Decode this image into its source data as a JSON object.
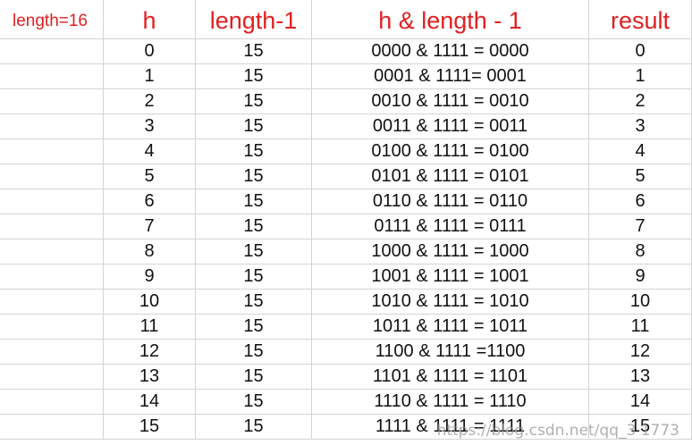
{
  "header": {
    "length_label": "length=16",
    "col_h": "h",
    "col_length_minus_1": "length-1",
    "col_expr": "h & length - 1",
    "col_result": "result"
  },
  "rows": [
    {
      "h": "0",
      "len": "15",
      "expr": "0000 & 1111 = 0000",
      "result": "0"
    },
    {
      "h": "1",
      "len": "15",
      "expr": "0001 & 1111= 0001",
      "result": "1"
    },
    {
      "h": "2",
      "len": "15",
      "expr": "0010 & 1111 = 0010",
      "result": "2"
    },
    {
      "h": "3",
      "len": "15",
      "expr": "0011 & 1111 = 0011",
      "result": "3"
    },
    {
      "h": "4",
      "len": "15",
      "expr": "0100 & 1111 = 0100",
      "result": "4"
    },
    {
      "h": "5",
      "len": "15",
      "expr": "0101 & 1111 = 0101",
      "result": "5"
    },
    {
      "h": "6",
      "len": "15",
      "expr": "0110 & 1111 = 0110",
      "result": "6"
    },
    {
      "h": "7",
      "len": "15",
      "expr": "0111 & 1111 = 0111",
      "result": "7"
    },
    {
      "h": "8",
      "len": "15",
      "expr": "1000 & 1111 = 1000",
      "result": "8"
    },
    {
      "h": "9",
      "len": "15",
      "expr": "1001 & 1111 = 1001",
      "result": "9"
    },
    {
      "h": "10",
      "len": "15",
      "expr": "1010 & 1111 = 1010",
      "result": "10"
    },
    {
      "h": "11",
      "len": "15",
      "expr": "1011 & 1111 = 1011",
      "result": "11"
    },
    {
      "h": "12",
      "len": "15",
      "expr": "1100 & 1111 =1100",
      "result": "12"
    },
    {
      "h": "13",
      "len": "15",
      "expr": "1101 & 1111 = 1101",
      "result": "13"
    },
    {
      "h": "14",
      "len": "15",
      "expr": "1110 & 1111 = 1110",
      "result": "14"
    },
    {
      "h": "15",
      "len": "15",
      "expr": "1111 & 1111 = 1111",
      "result": "15"
    }
  ],
  "watermark": "https://blog.csdn.net/qq_3 1773",
  "colors": {
    "header_text": "#e02020",
    "grid_line": "#d4d4d4",
    "cell_text": "#111111"
  }
}
